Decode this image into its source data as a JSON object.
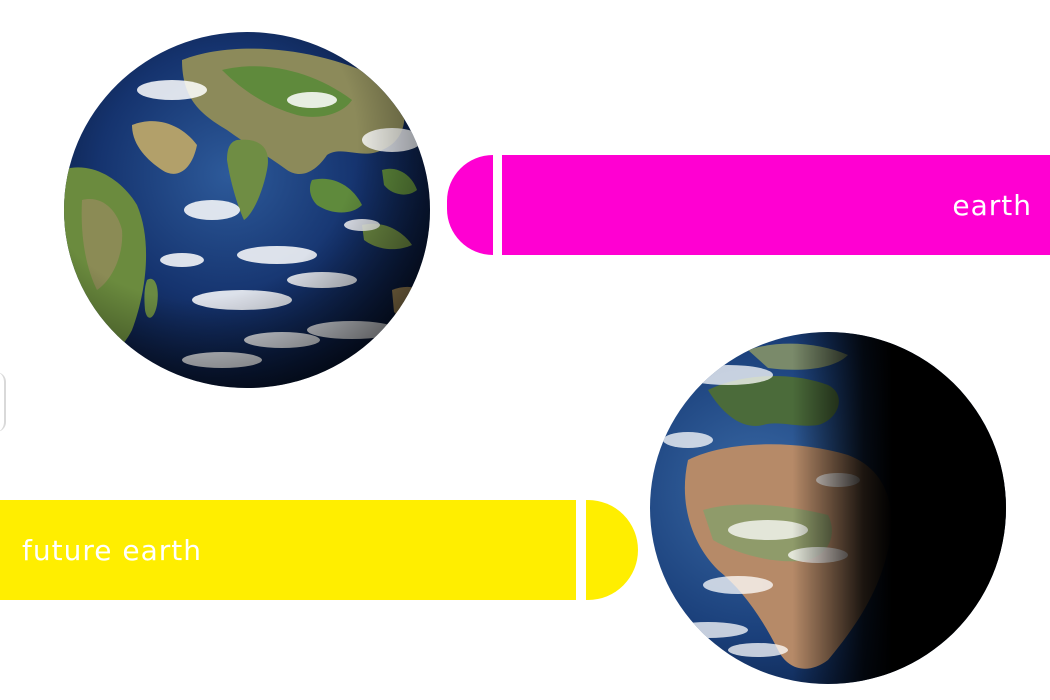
{
  "banners": {
    "earth": {
      "label": "earth",
      "color": "#ff00d2"
    },
    "future_earth": {
      "label": "future earth",
      "color": "#ffee00"
    }
  },
  "images": {
    "earth_globe": "earth-globe-daylight-icon",
    "future_globe": "earth-globe-day-night-icon"
  }
}
